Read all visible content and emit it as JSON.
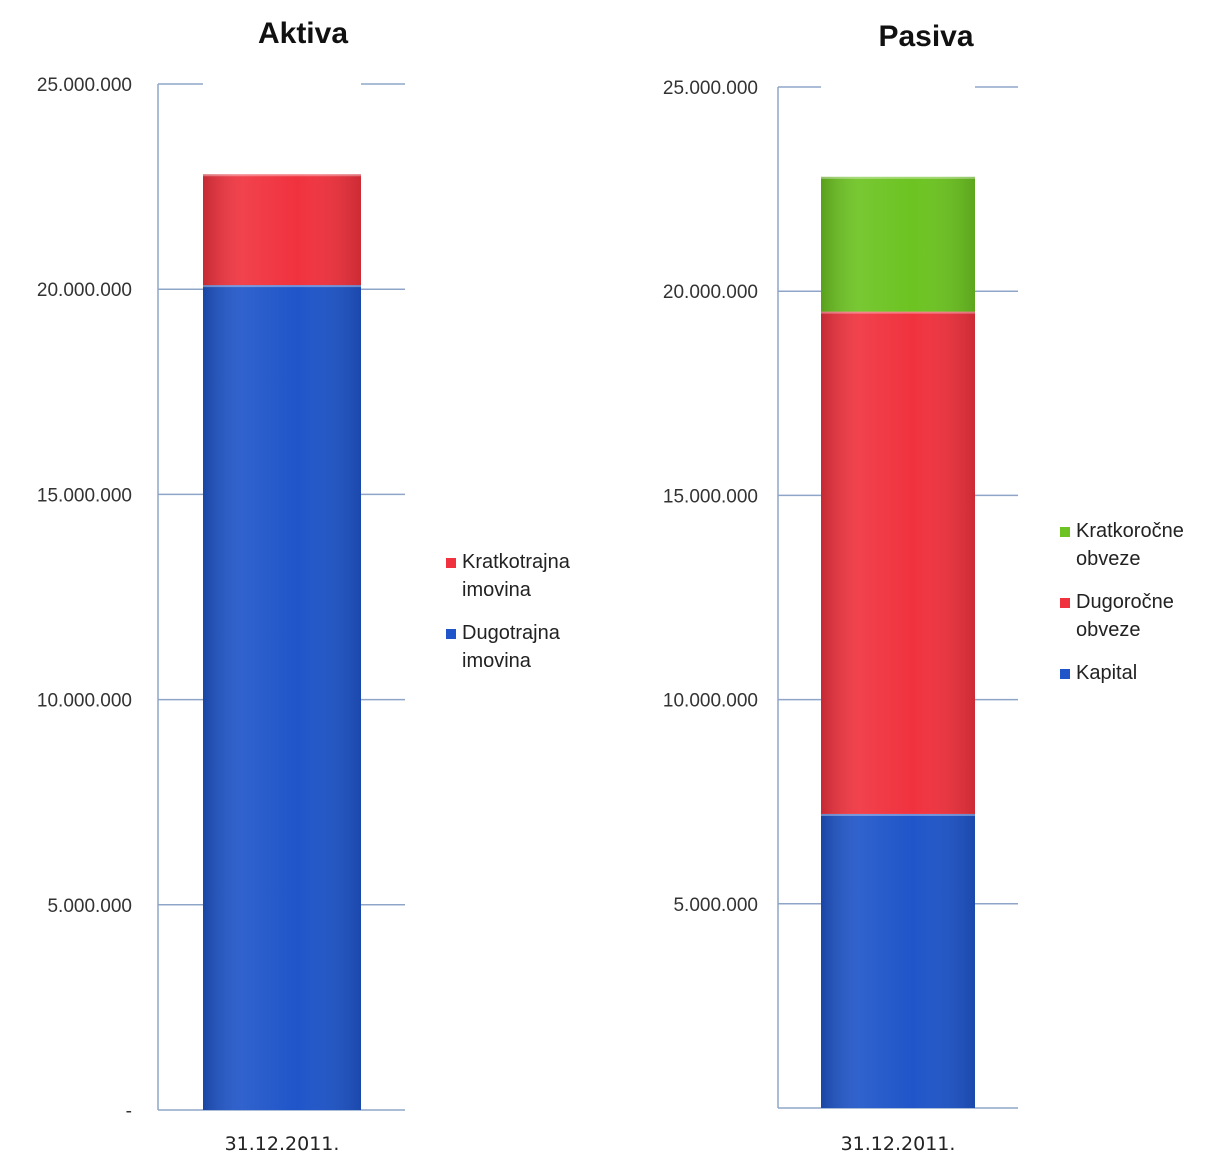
{
  "chart_data": [
    {
      "type": "bar",
      "stacked": true,
      "title": "Aktiva",
      "categories": [
        "31.12.2011."
      ],
      "ylim": [
        0,
        25000000
      ],
      "yticks": [
        "-",
        "5.000.000",
        "10.000.000",
        "15.000.000",
        "20.000.000",
        "25.000.000"
      ],
      "ytick_values": [
        0,
        5000000,
        10000000,
        15000000,
        20000000,
        25000000
      ],
      "grid": false,
      "legend_position": "right",
      "series": [
        {
          "name": "Dugotrajna imovina",
          "legend_lines": [
            "Dugotrajna",
            "imovina"
          ],
          "values": [
            20100000
          ],
          "color": "#1f55c9"
        },
        {
          "name": "Kratkotrajna imovina",
          "legend_lines": [
            "Kratkotrajna",
            "imovina"
          ],
          "values": [
            2700000
          ],
          "color": "#f0323e"
        }
      ]
    },
    {
      "type": "bar",
      "stacked": true,
      "title": "Pasiva",
      "categories": [
        "31.12.2011."
      ],
      "ylim": [
        0,
        25000000
      ],
      "yticks": [
        "5.000.000",
        "10.000.000",
        "15.000.000",
        "20.000.000",
        "25.000.000"
      ],
      "ytick_values": [
        5000000,
        10000000,
        15000000,
        20000000,
        25000000
      ],
      "grid": false,
      "legend_position": "right",
      "series": [
        {
          "name": "Kapital",
          "legend_lines": [
            "Kapital"
          ],
          "values": [
            7200000
          ],
          "color": "#1f55c9"
        },
        {
          "name": "Dugoročne obveze",
          "legend_lines": [
            "Dugoročne",
            "obveze"
          ],
          "values": [
            12300000
          ],
          "color": "#f0323e"
        },
        {
          "name": "Kratkoročne obveze",
          "legend_lines": [
            "Kratkoročne",
            "obveze"
          ],
          "values": [
            3300000
          ],
          "color": "#6cc321"
        }
      ]
    }
  ]
}
